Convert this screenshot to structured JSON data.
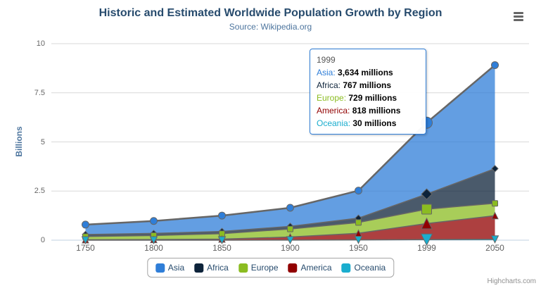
{
  "chart": {
    "title": "Historic and Estimated Worldwide Population Growth by Region",
    "subtitle": "Source: Wikipedia.org",
    "credits": "Highcharts.com"
  },
  "chart_data": {
    "type": "area",
    "stacking": "normal",
    "title": "Historic and Estimated Worldwide Population Growth by Region",
    "subtitle": "Source: Wikipedia.org",
    "xlabel": "",
    "ylabel": "Billions",
    "categories": [
      "1750",
      "1800",
      "1850",
      "1900",
      "1950",
      "1999",
      "2050"
    ],
    "series": [
      {
        "name": "Asia",
        "color": "#2f7ed8",
        "marker": "circle",
        "values_millions": [
          502,
          635,
          809,
          947,
          1402,
          3634,
          5268
        ]
      },
      {
        "name": "Africa",
        "color": "#0d233a",
        "marker": "diamond",
        "values_millions": [
          106,
          107,
          111,
          133,
          221,
          767,
          1766
        ]
      },
      {
        "name": "Europe",
        "color": "#8bbc21",
        "marker": "square",
        "values_millions": [
          163,
          203,
          276,
          408,
          547,
          729,
          628
        ]
      },
      {
        "name": "America",
        "color": "#910000",
        "marker": "triangle",
        "values_millions": [
          18,
          31,
          54,
          156,
          339,
          818,
          1201
        ]
      },
      {
        "name": "Oceania",
        "color": "#1aadce",
        "marker": "triangle-down",
        "values_millions": [
          2,
          2,
          2,
          6,
          13,
          30,
          46
        ]
      }
    ],
    "yticks": [
      "0",
      "2.5",
      "5",
      "7.5",
      "10"
    ],
    "ylim": [
      0,
      10
    ],
    "grid": true,
    "legend_position": "bottom",
    "line_color": "#666666",
    "grid_color": "#d8d8d8",
    "axis_line_color": "#c0d0e0",
    "fill_opacity": 0.75,
    "hover_category_index": 5
  },
  "tooltip": {
    "header": "1999",
    "separator": ": ",
    "rows": [
      {
        "name": "Asia",
        "color": "#2f7ed8",
        "value": "3,634 millions"
      },
      {
        "name": "Africa",
        "color": "#0d233a",
        "value": "767 millions"
      },
      {
        "name": "Europe",
        "color": "#8bbc21",
        "value": "729 millions"
      },
      {
        "name": "America",
        "color": "#910000",
        "value": "818 millions"
      },
      {
        "name": "Oceania",
        "color": "#1aadce",
        "value": "30 millions"
      }
    ]
  }
}
